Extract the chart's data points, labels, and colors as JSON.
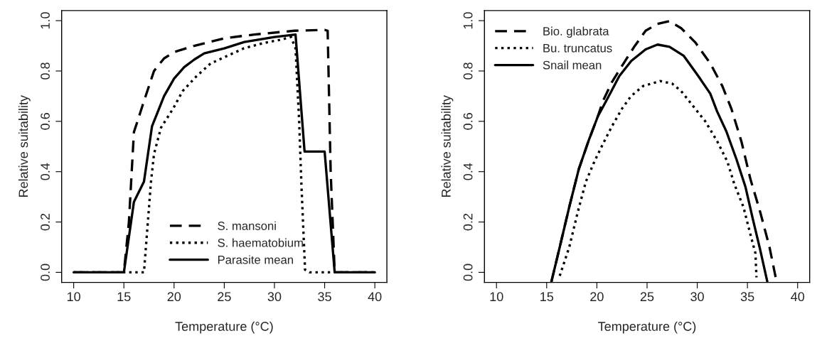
{
  "chart_data": [
    {
      "type": "line",
      "xlabel": "Temperature (°C)",
      "ylabel": "Relative suitability",
      "xlim": [
        8.8,
        41.2
      ],
      "ylim": [
        -0.04,
        1.04
      ],
      "xticks": [
        10,
        15,
        20,
        25,
        30,
        35,
        40
      ],
      "yticks": [
        {
          "value": 0,
          "label": "0.0"
        },
        {
          "value": 0.2,
          "label": "0.2"
        },
        {
          "value": 0.4,
          "label": "0.4"
        },
        {
          "value": 0.6,
          "label": "0.6"
        },
        {
          "value": 0.8,
          "label": "0.8"
        },
        {
          "value": 1,
          "label": "1.0"
        }
      ],
      "grid": false,
      "legend": "bottom",
      "series": [
        {
          "name": "S. mansoni",
          "color": "#000000",
          "line_style": "dashed",
          "x": [
            10,
            15,
            15.5,
            16,
            17,
            18,
            19,
            20,
            22,
            25,
            28,
            32,
            35,
            35.3,
            35.6,
            36,
            40
          ],
          "values": [
            0,
            0,
            0.2,
            0.557,
            0.68,
            0.8,
            0.85,
            0.875,
            0.9,
            0.93,
            0.945,
            0.96,
            0.963,
            0.96,
            0.4,
            0,
            0
          ]
        },
        {
          "name": "S. haematobium",
          "color": "#000000",
          "line_style": "dotted",
          "x": [
            10,
            17,
            17.7,
            18,
            18.7,
            19.9,
            20.85,
            22.25,
            23.65,
            25.3,
            26.95,
            28.8,
            30.7,
            31.65,
            32.1,
            32.45,
            32.7,
            33.05,
            33.5,
            40
          ],
          "values": [
            0,
            0,
            0.36,
            0.47,
            0.575,
            0.65,
            0.72,
            0.78,
            0.83,
            0.86,
            0.89,
            0.91,
            0.925,
            0.935,
            0.89,
            0.61,
            0.335,
            0.01,
            0,
            0
          ]
        },
        {
          "name": "Parasite mean",
          "color": "#000000",
          "line_style": "solid",
          "x": [
            10,
            15,
            16,
            17,
            17.8,
            19,
            20,
            21,
            22,
            23,
            25,
            27,
            30,
            32.1,
            33,
            35,
            36,
            40
          ],
          "values": [
            0,
            0,
            0.28,
            0.36,
            0.58,
            0.7,
            0.77,
            0.815,
            0.845,
            0.87,
            0.89,
            0.915,
            0.935,
            0.945,
            0.48,
            0.48,
            0,
            0
          ]
        }
      ]
    },
    {
      "type": "line",
      "xlabel": "Temperature (°C)",
      "ylabel": "Relative suitability",
      "xlim": [
        8.8,
        41.2
      ],
      "ylim": [
        -0.04,
        1.04
      ],
      "xticks": [
        10,
        15,
        20,
        25,
        30,
        35,
        40
      ],
      "yticks": [
        {
          "value": 0,
          "label": "0.0"
        },
        {
          "value": 0.2,
          "label": "0.2"
        },
        {
          "value": 0.4,
          "label": "0.4"
        },
        {
          "value": 0.6,
          "label": "0.6"
        },
        {
          "value": 0.8,
          "label": "0.8"
        },
        {
          "value": 1,
          "label": "1.0"
        }
      ],
      "grid": false,
      "legend": "top left",
      "series": [
        {
          "name": "Bio. glabrata",
          "color": "#000000",
          "line_style": "dashed",
          "x": [
            15.47,
            16.3,
            17.25,
            18.2,
            19.15,
            20.1,
            20.6,
            21.5,
            22.5,
            23.7,
            24.86,
            26.04,
            27.23,
            28.4,
            29.8,
            31.3,
            32.5,
            33.4,
            34.4,
            35.3,
            36.27,
            37.2,
            37.9
          ],
          "values": [
            -0.037,
            0.1,
            0.26,
            0.41,
            0.52,
            0.62,
            0.68,
            0.756,
            0.82,
            0.895,
            0.96,
            0.987,
            0.998,
            0.97,
            0.914,
            0.83,
            0.74,
            0.65,
            0.52,
            0.37,
            0.24,
            0.1,
            -0.037
          ]
        },
        {
          "name": "Bu. truncatus",
          "color": "#000000",
          "line_style": "dotted",
          "x": [
            16.3,
            17.25,
            18.1,
            18.9,
            19.75,
            20.6,
            21.5,
            22.5,
            23.4,
            24.6,
            26.3,
            27.5,
            28.4,
            29.6,
            30.8,
            32,
            33,
            33.7,
            34.6,
            35.3,
            35.8,
            35.9
          ],
          "values": [
            -0.014,
            0.1,
            0.24,
            0.36,
            0.44,
            0.51,
            0.58,
            0.65,
            0.7,
            0.74,
            0.76,
            0.75,
            0.72,
            0.66,
            0.6,
            0.52,
            0.44,
            0.35,
            0.26,
            0.15,
            0.075,
            -0.02
          ]
        },
        {
          "name": "Snail mean",
          "color": "#000000",
          "line_style": "solid",
          "x": [
            15.47,
            16.3,
            17.25,
            18.2,
            19.15,
            20.1,
            21.05,
            22.24,
            23.43,
            24.86,
            26.04,
            27.23,
            28.66,
            30.1,
            31.3,
            31.97,
            32.9,
            33.9,
            34.8,
            35.55,
            36.27,
            36.98
          ],
          "values": [
            -0.037,
            0.1,
            0.26,
            0.41,
            0.52,
            0.62,
            0.69,
            0.78,
            0.84,
            0.886,
            0.905,
            0.896,
            0.86,
            0.78,
            0.71,
            0.64,
            0.56,
            0.45,
            0.34,
            0.21,
            0.09,
            -0.037
          ]
        }
      ]
    }
  ]
}
